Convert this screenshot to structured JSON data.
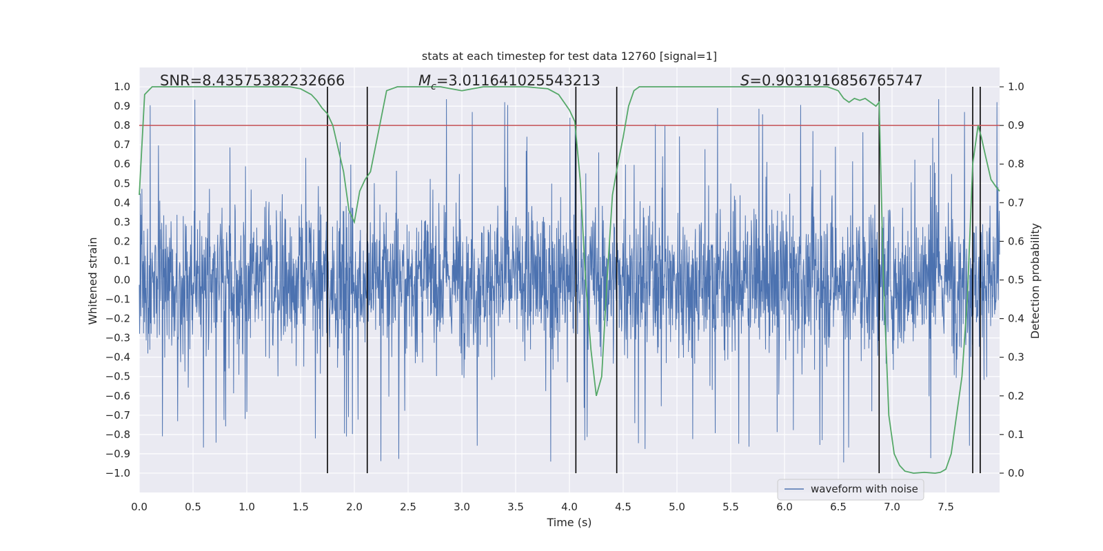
{
  "chart_data": {
    "type": "line",
    "title": "stats at each timestep for test data 12760 [signal=1]",
    "xlabel": "Time (s)",
    "ylabel": "Whitened strain",
    "ylabel_right": "Detection probability",
    "xlim": [
      0.0,
      8.0
    ],
    "ylim": [
      -1.1,
      1.1
    ],
    "ylim_right": [
      -0.05,
      1.05
    ],
    "x_ticks": [
      "0.0",
      "0.5",
      "1.0",
      "1.5",
      "2.0",
      "2.5",
      "3.0",
      "3.5",
      "4.0",
      "4.5",
      "5.0",
      "5.5",
      "6.0",
      "6.5",
      "7.0",
      "7.5"
    ],
    "y_ticks": [
      "1.0",
      "0.9",
      "0.8",
      "0.7",
      "0.6",
      "0.5",
      "0.4",
      "0.3",
      "0.2",
      "0.1",
      "0.0",
      "−0.1",
      "−0.2",
      "−0.3",
      "−0.4",
      "−0.5",
      "−0.6",
      "−0.7",
      "−0.8",
      "−0.9",
      "−1.0"
    ],
    "y_ticks_right": [
      "1.0",
      "0.9",
      "0.8",
      "0.7",
      "0.6",
      "0.5",
      "0.4",
      "0.3",
      "0.2",
      "0.1",
      "0.0"
    ],
    "annotations": {
      "snr": "SNR=8.43575382232666",
      "mc_symbol": "M",
      "mc_sub": "c",
      "mc_value": "=3.011641025543213",
      "s_symbol": "S",
      "s_value": "=0.9031916856765747"
    },
    "threshold": {
      "value": 0.9,
      "axis": "right",
      "color": "#c44e52"
    },
    "vertical_lines": [
      1.75,
      2.12,
      4.06,
      4.44,
      6.88,
      7.75,
      7.82
    ],
    "series": [
      {
        "name": "waveform with noise",
        "axis": "left",
        "color": "#4c72b0",
        "description": "dense whitened strain noise, approx. |y| <= 0.4 core with spikes up to ~1.0"
      },
      {
        "name": "detection probability",
        "axis": "right",
        "color": "#55a868",
        "x": [
          0.0,
          0.05,
          0.12,
          0.2,
          0.4,
          0.6,
          0.8,
          1.0,
          1.2,
          1.4,
          1.5,
          1.6,
          1.65,
          1.7,
          1.75,
          1.8,
          1.85,
          1.9,
          1.95,
          2.0,
          2.05,
          2.1,
          2.15,
          2.2,
          2.25,
          2.3,
          2.4,
          2.6,
          2.8,
          2.9,
          3.0,
          3.2,
          3.4,
          3.6,
          3.8,
          3.9,
          3.95,
          4.0,
          4.05,
          4.1,
          4.15,
          4.2,
          4.25,
          4.3,
          4.35,
          4.4,
          4.45,
          4.5,
          4.55,
          4.6,
          4.65,
          4.7,
          4.8,
          5.0,
          5.5,
          6.0,
          6.4,
          6.5,
          6.55,
          6.6,
          6.65,
          6.7,
          6.75,
          6.8,
          6.85,
          6.88,
          6.92,
          6.97,
          7.02,
          7.07,
          7.12,
          7.2,
          7.3,
          7.4,
          7.45,
          7.5,
          7.55,
          7.6,
          7.65,
          7.7,
          7.75,
          7.8,
          7.83,
          7.87,
          7.92,
          7.97,
          8.0
        ],
        "values": [
          0.72,
          0.98,
          1.0,
          1.0,
          1.0,
          1.0,
          1.0,
          1.0,
          1.0,
          1.0,
          0.995,
          0.98,
          0.965,
          0.945,
          0.93,
          0.9,
          0.84,
          0.78,
          0.68,
          0.65,
          0.73,
          0.76,
          0.78,
          0.85,
          0.92,
          0.99,
          1.0,
          1.0,
          1.0,
          0.995,
          0.99,
          1.0,
          1.0,
          1.0,
          0.995,
          0.98,
          0.96,
          0.94,
          0.91,
          0.76,
          0.5,
          0.32,
          0.2,
          0.25,
          0.5,
          0.72,
          0.8,
          0.87,
          0.95,
          0.99,
          1.0,
          1.0,
          1.0,
          1.0,
          1.0,
          1.0,
          1.0,
          0.99,
          0.97,
          0.96,
          0.97,
          0.965,
          0.97,
          0.96,
          0.95,
          0.96,
          0.5,
          0.15,
          0.05,
          0.02,
          0.005,
          0.0,
          0.002,
          0.0,
          0.002,
          0.01,
          0.05,
          0.15,
          0.25,
          0.45,
          0.8,
          0.9,
          0.87,
          0.82,
          0.76,
          0.74,
          0.73
        ]
      }
    ],
    "legend": {
      "location": "bottom-right",
      "entries": [
        "waveform with noise"
      ]
    },
    "grid": true
  },
  "colors": {
    "background": "#eaeaf2",
    "grid": "#ffffff",
    "waveform": "#4c72b0",
    "probability": "#55a868",
    "threshold": "#c44e52",
    "vlines": "#000000"
  }
}
